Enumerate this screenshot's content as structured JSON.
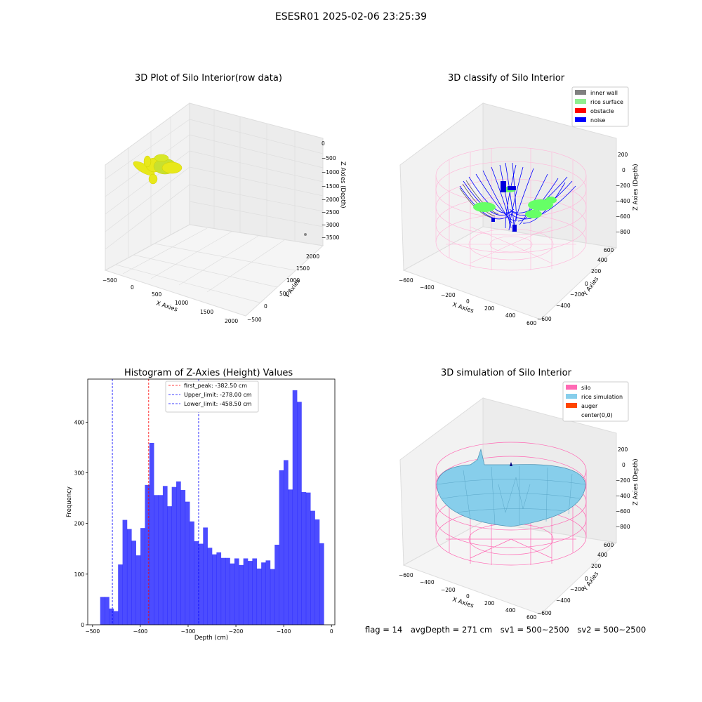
{
  "suptitle": "ESESR01 2025-02-06 23:25:39",
  "raw_plot": {
    "title": "3D Plot of Silo Interior(row data)",
    "xlabel": "X Axies",
    "ylabel": "Y Axies",
    "zlabel": "Z Axies (Depth)",
    "x_ticks": [
      "−500",
      "0",
      "500",
      "1000",
      "1500",
      "2000"
    ],
    "y_ticks": [
      "−500",
      "0",
      "500",
      "1000",
      "1500",
      "2000"
    ],
    "z_ticks": [
      "0",
      "−500",
      "−1000",
      "−1500",
      "−2000",
      "−2500",
      "−3000",
      "−3500"
    ],
    "point_color": "#e8e81a"
  },
  "classify_plot": {
    "title": "3D classify of Silo Interior",
    "xlabel": "X Axies",
    "ylabel": "Y Axies",
    "zlabel": "Z Axies (Depth)",
    "x_ticks": [
      "−600",
      "−400",
      "−200",
      "0",
      "200",
      "400",
      "600"
    ],
    "y_ticks": [
      "−600",
      "−400",
      "−200",
      "0",
      "200",
      "400",
      "600"
    ],
    "z_ticks": [
      "200",
      "0",
      "−200",
      "−400",
      "−600",
      "−800"
    ],
    "legend": [
      {
        "label": "inner wall",
        "color": "#808080"
      },
      {
        "label": "rice surface",
        "color": "#90ee90"
      },
      {
        "label": "obstacle",
        "color": "#ff0000"
      },
      {
        "label": "noise",
        "color": "#0000ff"
      }
    ]
  },
  "chart_data": {
    "type": "bar",
    "title": "Histogram of Z-Axies (Height) Values",
    "xlabel": "Depth (cm)",
    "ylabel": "Frequency",
    "xlim": [
      -510,
      7
    ],
    "ylim": [
      0,
      485
    ],
    "bin_start": -484,
    "bin_width": 9.36,
    "values": [
      55,
      55,
      32,
      27,
      119,
      207,
      189,
      166,
      137,
      191,
      276,
      359,
      256,
      256,
      274,
      234,
      272,
      283,
      266,
      243,
      204,
      165,
      160,
      192,
      152,
      139,
      143,
      132,
      132,
      121,
      131,
      118,
      131,
      126,
      131,
      111,
      123,
      127,
      110,
      158,
      305,
      325,
      267,
      463,
      440,
      262,
      261,
      225,
      208,
      161
    ],
    "bar_color": "#0000ff",
    "x_ticks": [
      -500,
      -400,
      -300,
      -200,
      -100,
      0
    ],
    "y_ticks": [
      0,
      100,
      200,
      300,
      400
    ],
    "lines": [
      {
        "label": "first_peak: -382.50 cm",
        "x": -382.5,
        "color": "#ff0000"
      },
      {
        "label": "Upper_limit: -278.00 cm",
        "x": -278.0,
        "color": "#0000ff"
      },
      {
        "label": "Lower_limit: -458.50 cm",
        "x": -458.5,
        "color": "#0000ff"
      }
    ]
  },
  "sim_plot": {
    "title": "3D simulation of Silo Interior",
    "xlabel": "X Axies",
    "ylabel": "Y Axies",
    "zlabel": "Z Axies (Depth)",
    "x_ticks": [
      "−600",
      "−400",
      "−200",
      "0",
      "200",
      "400",
      "600"
    ],
    "y_ticks": [
      "−600",
      "−400",
      "−200",
      "0",
      "200",
      "400",
      "600"
    ],
    "z_ticks": [
      "200",
      "0",
      "−200",
      "−400",
      "−600",
      "−800"
    ],
    "legend": [
      {
        "label": "silo",
        "color": "#ff69b4"
      },
      {
        "label": "rice simulation",
        "color": "#87ceeb"
      },
      {
        "label": "auger",
        "color": "#ff4500"
      },
      {
        "label": "center(0,0)",
        "color": "#ffffff"
      }
    ]
  },
  "footer": {
    "flag": "flag = 14",
    "avg_depth": "avgDepth = 271 cm",
    "sv1": "sv1 = 500~2500",
    "sv2": "sv2 = 500~2500"
  }
}
